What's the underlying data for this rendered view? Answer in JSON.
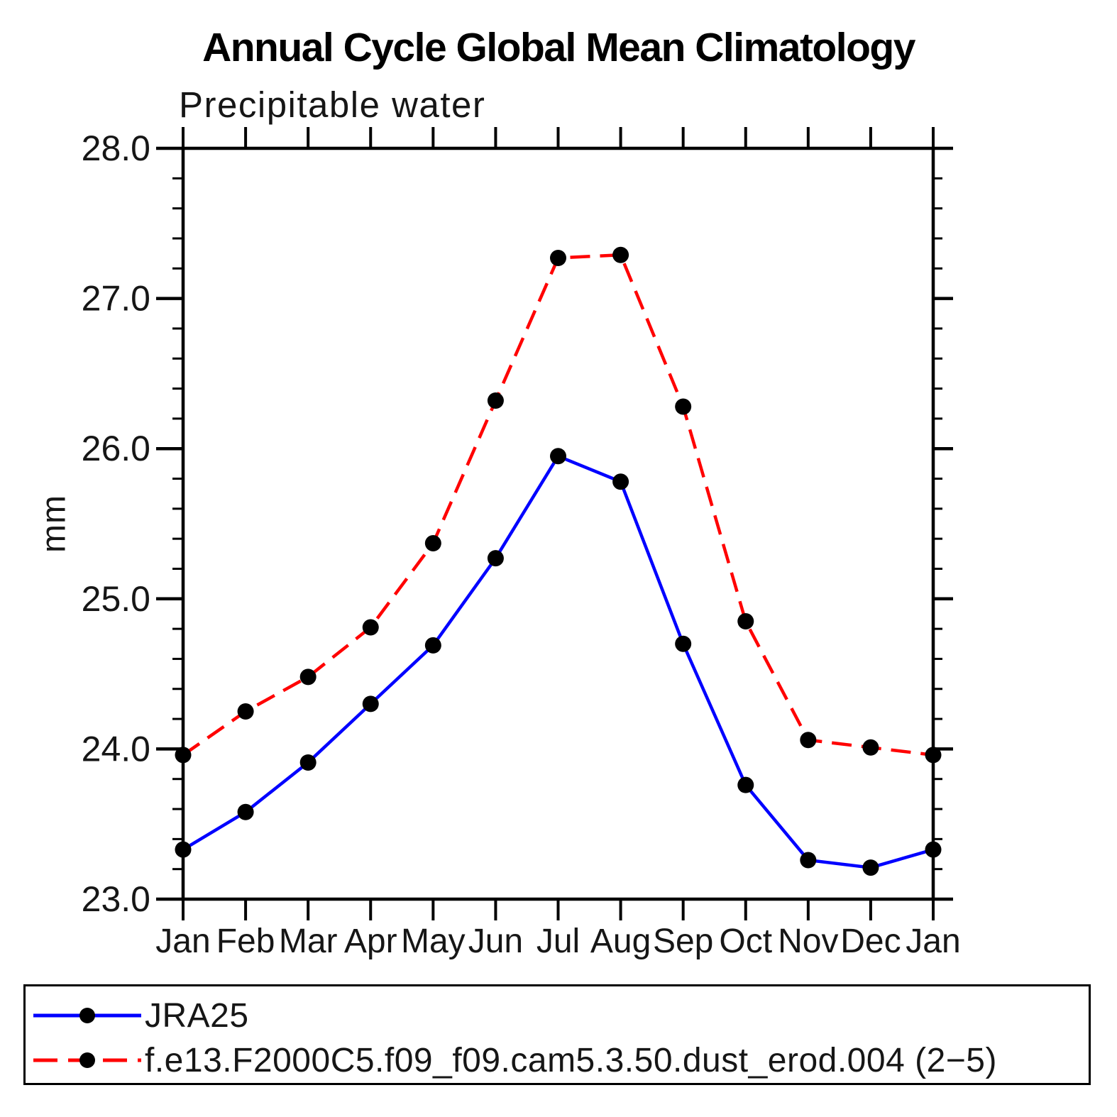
{
  "title": "Annual Cycle Global Mean Climatology",
  "subtitle": "Precipitable water",
  "ylabel": "mm",
  "chart_data": {
    "type": "line",
    "x_categories": [
      "Jan",
      "Feb",
      "Mar",
      "Apr",
      "May",
      "Jun",
      "Jul",
      "Aug",
      "Sep",
      "Oct",
      "Nov",
      "Dec",
      "Jan"
    ],
    "xlabel": "",
    "ylabel": "mm",
    "ylim": [
      23.0,
      28.0
    ],
    "y_ticks": [
      {
        "value": 23.0,
        "label": "23.0"
      },
      {
        "value": 24.0,
        "label": "24.0"
      },
      {
        "value": 25.0,
        "label": "25.0"
      },
      {
        "value": 26.0,
        "label": "26.0"
      },
      {
        "value": 27.0,
        "label": "27.0"
      },
      {
        "value": 28.0,
        "label": "28.0"
      }
    ],
    "y_minor_step": 0.2,
    "grid": false,
    "frame": "box-with-outward-ticks",
    "legend_position": "boxed-below-plot",
    "marker_color": "#000000",
    "series": [
      {
        "name": "JRA25",
        "color": "#0000ff",
        "line_style": "solid",
        "marker": "circle",
        "values": [
          23.33,
          23.58,
          23.91,
          24.3,
          24.69,
          25.27,
          25.95,
          25.78,
          24.7,
          23.76,
          23.26,
          23.21,
          23.33
        ]
      },
      {
        "name": "f.e13.F2000C5.f09_f09.cam5.3.50.dust_erod.004 (2−5)",
        "color": "#ff0000",
        "line_style": "dashed",
        "marker": "circle",
        "values": [
          23.96,
          24.25,
          24.48,
          24.81,
          25.37,
          26.32,
          27.27,
          27.29,
          26.28,
          24.85,
          24.06,
          24.01,
          23.96
        ]
      }
    ]
  }
}
